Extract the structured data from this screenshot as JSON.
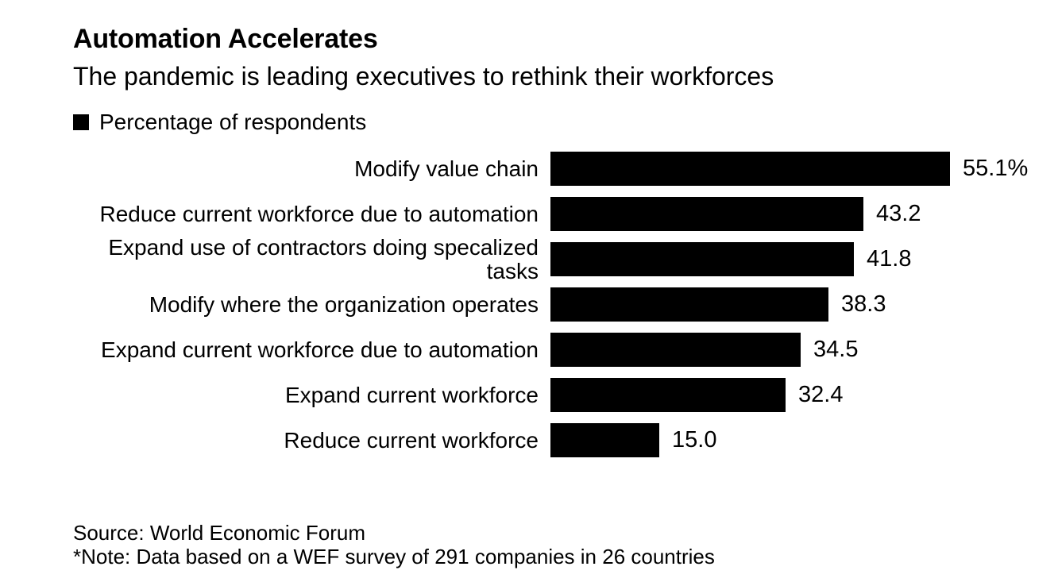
{
  "chart_data": {
    "type": "bar",
    "orientation": "horizontal",
    "title": "Automation Accelerates",
    "subtitle": "The pandemic is leading executives to rethink their workforces",
    "legend": "Percentage of respondents",
    "categories": [
      "Modify value chain",
      "Reduce current workforce due to automation",
      "Expand use of contractors doing specalized tasks",
      "Modify where the organization operates",
      "Expand current workforce due to automation",
      "Expand current workforce",
      "Reduce current workforce"
    ],
    "values": [
      55.1,
      43.2,
      41.8,
      38.3,
      34.5,
      32.4,
      15.0
    ],
    "value_labels": [
      "55.1%",
      "43.2",
      "41.8",
      "38.3",
      "34.5",
      "32.4",
      "15.0"
    ],
    "xlim": [
      0,
      55.1
    ],
    "bar_color": "#000000",
    "grid": false,
    "legend_position": "top-left",
    "source": "Source: World Economic Forum",
    "note": "*Note: Data based on a WEF survey of 291 companies in 26 countries"
  }
}
